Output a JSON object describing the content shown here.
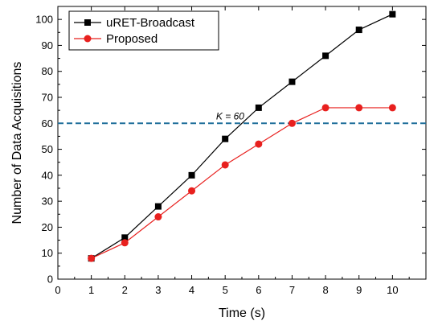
{
  "chart_data": {
    "type": "line",
    "xlabel": "Time (s)",
    "ylabel": "Number of Data Acquisitions",
    "xlim": [
      0,
      11
    ],
    "ylim": [
      0,
      105
    ],
    "xticks": [
      0,
      1,
      2,
      3,
      4,
      5,
      6,
      7,
      8,
      9,
      10
    ],
    "yticks": [
      0,
      10,
      20,
      30,
      40,
      50,
      60,
      70,
      80,
      90,
      100
    ],
    "series": [
      {
        "name": "uRET-Broadcast",
        "color": "#000000",
        "marker": "square",
        "x": [
          1,
          2,
          3,
          4,
          5,
          6,
          7,
          8,
          9,
          10
        ],
        "y": [
          8,
          16,
          28,
          40,
          54,
          66,
          76,
          86,
          96,
          102
        ]
      },
      {
        "name": "Proposed",
        "color": "#e8201e",
        "marker": "circle",
        "x": [
          1,
          2,
          3,
          4,
          5,
          6,
          7,
          8,
          9,
          10
        ],
        "y": [
          8,
          14,
          24,
          34,
          44,
          52,
          60,
          66,
          66,
          66
        ]
      }
    ],
    "reference_line": {
      "y": 60,
      "label": "K = 60",
      "color": "#1f6f9a",
      "style": "dashed"
    },
    "legend": {
      "placement": "top-left"
    },
    "grid": false
  }
}
